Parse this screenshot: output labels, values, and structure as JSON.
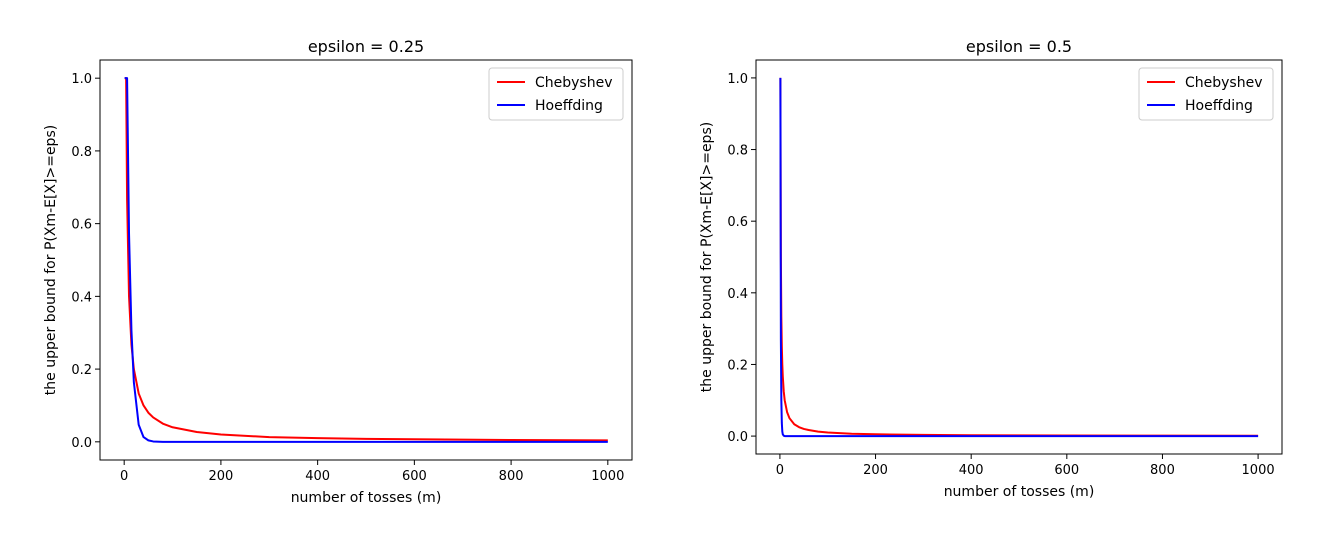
{
  "chart_data": [
    {
      "type": "line",
      "title": "epsilon = 0.25",
      "xlabel": "number of tosses (m)",
      "ylabel": "the upper bound for P(Xm-E[X]>=eps)",
      "xlim": [
        -50,
        1050
      ],
      "ylim": [
        -0.05,
        1.05
      ],
      "xticks": [
        0,
        200,
        400,
        600,
        800,
        1000
      ],
      "xtick_labels": [
        "0",
        "200",
        "400",
        "600",
        "800",
        "1000"
      ],
      "yticks": [
        0.0,
        0.2,
        0.4,
        0.6,
        0.8,
        1.0
      ],
      "ytick_labels": [
        "0.0",
        "0.2",
        "0.4",
        "0.6",
        "0.8",
        "1.0"
      ],
      "legend": "top-right",
      "grid": false,
      "x": [
        1,
        4,
        6,
        10,
        15,
        20,
        30,
        40,
        50,
        60,
        80,
        100,
        150,
        200,
        300,
        400,
        500,
        600,
        800,
        1000
      ],
      "series": [
        {
          "name": "Chebyshev",
          "color": "#ff0000",
          "values": [
            1.0,
            1.0,
            0.667,
            0.4,
            0.267,
            0.2,
            0.133,
            0.1,
            0.08,
            0.067,
            0.05,
            0.04,
            0.027,
            0.02,
            0.013,
            0.01,
            0.008,
            0.007,
            0.005,
            0.004
          ]
        },
        {
          "name": "Hoeffding",
          "color": "#0000ff",
          "values": [
            1.0,
            1.0,
            1.0,
            0.573,
            0.306,
            0.164,
            0.047,
            0.013,
            0.004,
            0.001,
            0.0,
            0.0,
            0.0,
            0.0,
            0.0,
            0.0,
            0.0,
            0.0,
            0.0,
            0.0
          ]
        }
      ]
    },
    {
      "type": "line",
      "title": "epsilon = 0.5",
      "xlabel": "number of tosses (m)",
      "ylabel": "the upper bound for P(Xm-E[X]>=eps)",
      "xlim": [
        -50,
        1050
      ],
      "ylim": [
        -0.05,
        1.05
      ],
      "xticks": [
        0,
        200,
        400,
        600,
        800,
        1000
      ],
      "xtick_labels": [
        "0",
        "200",
        "400",
        "600",
        "800",
        "1000"
      ],
      "yticks": [
        0.0,
        0.2,
        0.4,
        0.6,
        0.8,
        1.0
      ],
      "ytick_labels": [
        "0.0",
        "0.2",
        "0.4",
        "0.6",
        "0.8",
        "1.0"
      ],
      "legend": "top-right",
      "grid": false,
      "x": [
        1,
        2,
        3,
        4,
        5,
        6,
        8,
        10,
        15,
        20,
        30,
        40,
        50,
        60,
        80,
        100,
        150,
        200,
        300,
        400,
        500,
        600,
        800,
        1000
      ],
      "series": [
        {
          "name": "Chebyshev",
          "color": "#ff0000",
          "values": [
            1.0,
            0.5,
            0.333,
            0.25,
            0.2,
            0.167,
            0.125,
            0.1,
            0.067,
            0.05,
            0.033,
            0.025,
            0.02,
            0.017,
            0.0125,
            0.01,
            0.0067,
            0.005,
            0.0033,
            0.0025,
            0.002,
            0.0017,
            0.00125,
            0.001
          ]
        },
        {
          "name": "Hoeffding",
          "color": "#0000ff",
          "values": [
            1.0,
            0.271,
            0.1,
            0.037,
            0.013,
            0.005,
            0.001,
            0.0,
            0.0,
            0.0,
            0.0,
            0.0,
            0.0,
            0.0,
            0.0,
            0.0,
            0.0,
            0.0,
            0.0,
            0.0,
            0.0,
            0.0,
            0.0,
            0.0
          ]
        }
      ]
    }
  ]
}
